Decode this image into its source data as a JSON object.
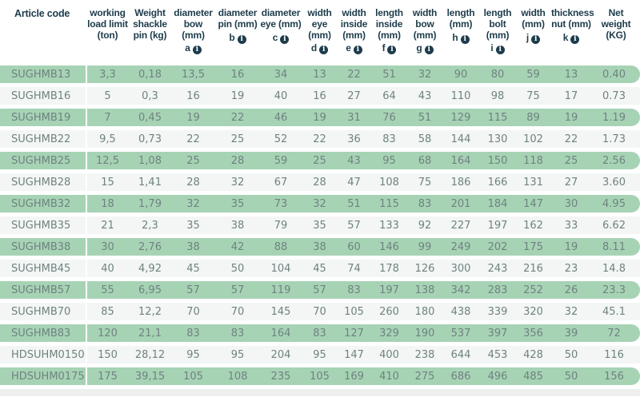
{
  "colors": {
    "row_green": "#a7d3b5",
    "row_light": "#f3f6f4",
    "header_text": "#1d3c4b",
    "cell_text": "#6f8280"
  },
  "icons": {
    "info": "i"
  },
  "table": {
    "columns": [
      {
        "label": "Article code",
        "letter": ""
      },
      {
        "label": "working load limit (ton)",
        "letter": ""
      },
      {
        "label": "Weight shackle pin (kg)",
        "letter": ""
      },
      {
        "label": "diameter bow (mm)",
        "letter": "a"
      },
      {
        "label": "diameter pin (mm)",
        "letter": "b"
      },
      {
        "label": "diameter eye (mm)",
        "letter": "c"
      },
      {
        "label": "width eye (mm)",
        "letter": "d"
      },
      {
        "label": "width inside (mm)",
        "letter": "e"
      },
      {
        "label": "length inside (mm)",
        "letter": "f"
      },
      {
        "label": "width bow (mm)",
        "letter": "g"
      },
      {
        "label": "length (mm)",
        "letter": "h"
      },
      {
        "label": "length bolt (mm)",
        "letter": "i"
      },
      {
        "label": "width (mm)",
        "letter": "j"
      },
      {
        "label": "thickness nut (mm)",
        "letter": "k"
      },
      {
        "label": "Net weight (KG)",
        "letter": ""
      }
    ],
    "rows": [
      [
        "SUGHMB13",
        "3,3",
        "0,18",
        "13,5",
        "16",
        "34",
        "13",
        "22",
        "51",
        "32",
        "90",
        "80",
        "59",
        "13",
        "0.40"
      ],
      [
        "SUGHMB16",
        "5",
        "0,3",
        "16",
        "19",
        "40",
        "16",
        "27",
        "64",
        "43",
        "110",
        "98",
        "75",
        "17",
        "0.73"
      ],
      [
        "SUGHMB19",
        "7",
        "0,45",
        "19",
        "22",
        "46",
        "19",
        "31",
        "76",
        "51",
        "129",
        "115",
        "89",
        "19",
        "1.19"
      ],
      [
        "SUGHMB22",
        "9,5",
        "0,73",
        "22",
        "25",
        "52",
        "22",
        "36",
        "83",
        "58",
        "144",
        "130",
        "102",
        "22",
        "1.73"
      ],
      [
        "SUGHMB25",
        "12,5",
        "1,08",
        "25",
        "28",
        "59",
        "25",
        "43",
        "95",
        "68",
        "164",
        "150",
        "118",
        "25",
        "2.56"
      ],
      [
        "SUGHMB28",
        "15",
        "1,41",
        "28",
        "32",
        "67",
        "28",
        "47",
        "108",
        "75",
        "186",
        "166",
        "131",
        "27",
        "3.60"
      ],
      [
        "SUGHMB32",
        "18",
        "1,79",
        "32",
        "35",
        "73",
        "32",
        "51",
        "115",
        "83",
        "201",
        "184",
        "147",
        "30",
        "4.95"
      ],
      [
        "SUGHMB35",
        "21",
        "2,3",
        "35",
        "38",
        "79",
        "35",
        "57",
        "133",
        "92",
        "227",
        "197",
        "162",
        "33",
        "6.62"
      ],
      [
        "SUGHMB38",
        "30",
        "2,76",
        "38",
        "42",
        "88",
        "38",
        "60",
        "146",
        "99",
        "249",
        "202",
        "175",
        "19",
        "8.11"
      ],
      [
        "SUGHMB45",
        "40",
        "4,92",
        "45",
        "50",
        "104",
        "45",
        "74",
        "178",
        "126",
        "300",
        "243",
        "216",
        "23",
        "14.8"
      ],
      [
        "SUGHMB57",
        "55",
        "6,95",
        "57",
        "57",
        "119",
        "57",
        "83",
        "197",
        "138",
        "342",
        "283",
        "252",
        "26",
        "23.3"
      ],
      [
        "SUGHMB70",
        "85",
        "12,2",
        "70",
        "70",
        "145",
        "70",
        "105",
        "260",
        "180",
        "438",
        "339",
        "320",
        "32",
        "45.1"
      ],
      [
        "SUGHMB83",
        "120",
        "21,1",
        "83",
        "83",
        "164",
        "83",
        "127",
        "329",
        "190",
        "537",
        "397",
        "356",
        "39",
        "72"
      ],
      [
        "HDSUHM0150",
        "150",
        "28,12",
        "95",
        "95",
        "204",
        "95",
        "147",
        "400",
        "238",
        "644",
        "453",
        "428",
        "50",
        "116"
      ],
      [
        "HDSUHM0175",
        "175",
        "39,15",
        "105",
        "108",
        "235",
        "105",
        "169",
        "410",
        "275",
        "686",
        "496",
        "485",
        "50",
        "156"
      ]
    ]
  }
}
